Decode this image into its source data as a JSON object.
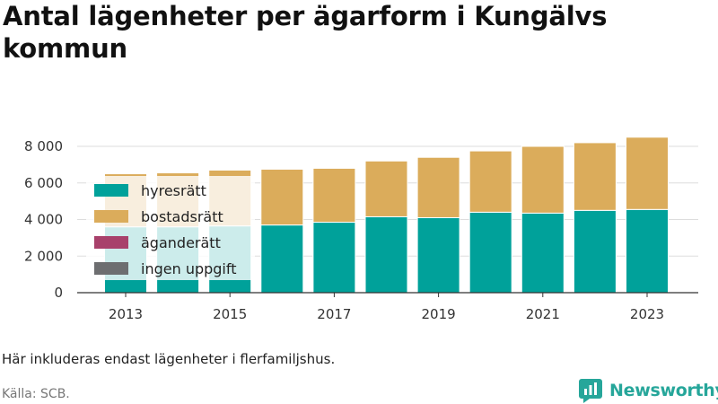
{
  "title": "Antal lägenheter per ägarform i Kungälvs kommun",
  "note": "Här inkluderas endast lägenheter i flerfamiljshus.",
  "source": "Källa: SCB.",
  "brand": "Newsworthy",
  "colors": {
    "hyresratt": "#00a19a",
    "bostadsratt": "#dbac5b",
    "aganderatt": "#a8416b",
    "ingen_uppgift": "#6d6e70",
    "grid": "#dddddd",
    "axis": "#333333"
  },
  "chart_data": {
    "type": "bar",
    "stacked": true,
    "categories": [
      "2013",
      "2014",
      "2015",
      "2016",
      "2017",
      "2018",
      "2019",
      "2020",
      "2021",
      "2022",
      "2023"
    ],
    "x_tick_labels": [
      "2013",
      "2015",
      "2017",
      "2019",
      "2021",
      "2023"
    ],
    "y_tick_labels": [
      "0",
      "2 000",
      "4 000",
      "6 000",
      "8 000"
    ],
    "y_ticks": [
      0,
      2000,
      4000,
      6000,
      8000
    ],
    "ylim": [
      0,
      8500
    ],
    "grid": true,
    "legend_position": "top-left",
    "series": [
      {
        "name": "hyresrätt",
        "color_key": "hyresratt",
        "values": [
          3600,
          3600,
          3650,
          3700,
          3850,
          4150,
          4100,
          4400,
          4350,
          4500,
          4550
        ]
      },
      {
        "name": "bostadsrätt",
        "color_key": "bostadsratt",
        "values": [
          2900,
          2950,
          3050,
          3050,
          2950,
          3050,
          3300,
          3350,
          3650,
          3700,
          3950
        ]
      },
      {
        "name": "äganderätt",
        "color_key": "aganderatt",
        "values": [
          0,
          0,
          0,
          0,
          0,
          0,
          0,
          0,
          0,
          0,
          0
        ]
      },
      {
        "name": "ingen uppgift",
        "color_key": "ingen_uppgift",
        "values": [
          0,
          0,
          0,
          0,
          0,
          0,
          0,
          0,
          0,
          0,
          0
        ]
      }
    ]
  }
}
